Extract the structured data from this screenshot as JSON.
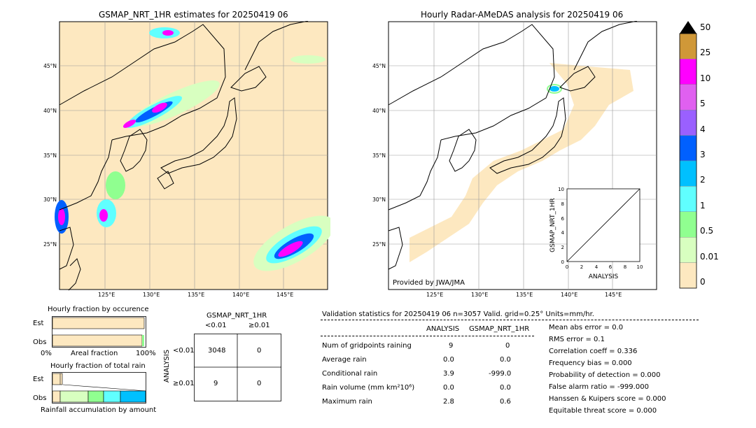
{
  "map_left": {
    "title": "GSMAP_NRT_1HR estimates for 20250419 06",
    "lat_labels": [
      "45°N",
      "40°N",
      "35°N",
      "30°N",
      "25°N"
    ],
    "lon_labels": [
      "125°E",
      "130°E",
      "135°E",
      "140°E",
      "145°E"
    ]
  },
  "map_right": {
    "title": "Hourly Radar-AMeDAS analysis for 20250419 06",
    "lat_labels": [
      "45°N",
      "40°N",
      "35°N",
      "30°N",
      "25°N"
    ],
    "lon_labels": [
      "125°E",
      "130°E",
      "135°E",
      "140°E",
      "145°E"
    ],
    "credit": "Provided by JWA/JMA",
    "inset": {
      "ylabel": "GSMAP_NRT_1HR",
      "xlabel": "ANALYSIS",
      "ticks": [
        "0",
        "2",
        "4",
        "6",
        "8",
        "10"
      ]
    }
  },
  "colorbar": {
    "labels": [
      "50",
      "25",
      "10",
      "5",
      "4",
      "3",
      "2",
      "1",
      "0.5",
      "0.01",
      "0"
    ],
    "colors": [
      "#d09838",
      "#ff00ff",
      "#e060f0",
      "#9a60ff",
      "#0060ff",
      "#00c0ff",
      "#60ffff",
      "#90ff90",
      "#d8ffc0",
      "#fde8c0"
    ],
    "over_color": "#000000"
  },
  "fraction_occurrence": {
    "title": "Hourly fraction by occurence",
    "rows": [
      "Est",
      "Obs"
    ],
    "xaxis_left": "0%",
    "xaxis_mid": "Areal fraction",
    "xaxis_right": "100%"
  },
  "fraction_total": {
    "title": "Hourly fraction of total rain",
    "rows": [
      "Est",
      "Obs"
    ],
    "footer": "Rainfall accumulation by amount"
  },
  "contingency": {
    "col_title": "GSMAP_NRT_1HR",
    "col_labels": [
      "<0.01",
      "≥0.01"
    ],
    "row_title": "ANALYSIS",
    "row_labels": [
      "<0.01",
      "≥0.01"
    ],
    "cells": [
      [
        "3048",
        "0"
      ],
      [
        "9",
        "0"
      ]
    ]
  },
  "validation": {
    "header": "Validation statistics for 20250419 06  n=3057 Valid. grid=0.25° Units=mm/hr.",
    "col_analysis": "ANALYSIS",
    "col_gsmap": "GSMAP_NRT_1HR",
    "rows": [
      {
        "label": "Num of gridpoints raining",
        "analysis": "9",
        "gsmap": "0"
      },
      {
        "label": "Average rain",
        "analysis": "0.0",
        "gsmap": "0.0"
      },
      {
        "label": "Conditional rain",
        "analysis": "3.9",
        "gsmap": "-999.0"
      },
      {
        "label": "Rain volume (mm km²10⁶)",
        "analysis": "0.0",
        "gsmap": "0.0"
      },
      {
        "label": "Maximum rain",
        "analysis": "2.8",
        "gsmap": "0.6"
      }
    ],
    "scores": [
      "Mean abs error =    0.0",
      "RMS error =    0.1",
      "Correlation coeff =  0.336",
      "Frequency bias =  0.000",
      "Probability of detection =  0.000",
      "False alarm ratio = -999.000",
      "Hanssen & Kuipers score =  0.000",
      "Equitable threat score =  0.000"
    ]
  },
  "chart_data": {
    "type": "table",
    "contingency_table": {
      "rows": [
        "ANALYSIS <0.01",
        "ANALYSIS ≥0.01"
      ],
      "cols": [
        "GSMAP_NRT_1HR <0.01",
        "GSMAP_NRT_1HR ≥0.01"
      ],
      "values": [
        [
          3048,
          0
        ],
        [
          9,
          0
        ]
      ]
    },
    "statistics": {
      "n": 3057,
      "num_gridpoints_raining": {
        "analysis": 9,
        "gsmap": 0
      },
      "average_rain": {
        "analysis": 0.0,
        "gsmap": 0.0
      },
      "conditional_rain": {
        "analysis": 3.9,
        "gsmap": -999.0
      },
      "rain_volume": {
        "analysis": 0.0,
        "gsmap": 0.0
      },
      "maximum_rain": {
        "analysis": 2.8,
        "gsmap": 0.6
      }
    },
    "inset_scatter": {
      "xlim": [
        0,
        10
      ],
      "ylim": [
        0,
        10
      ]
    }
  }
}
